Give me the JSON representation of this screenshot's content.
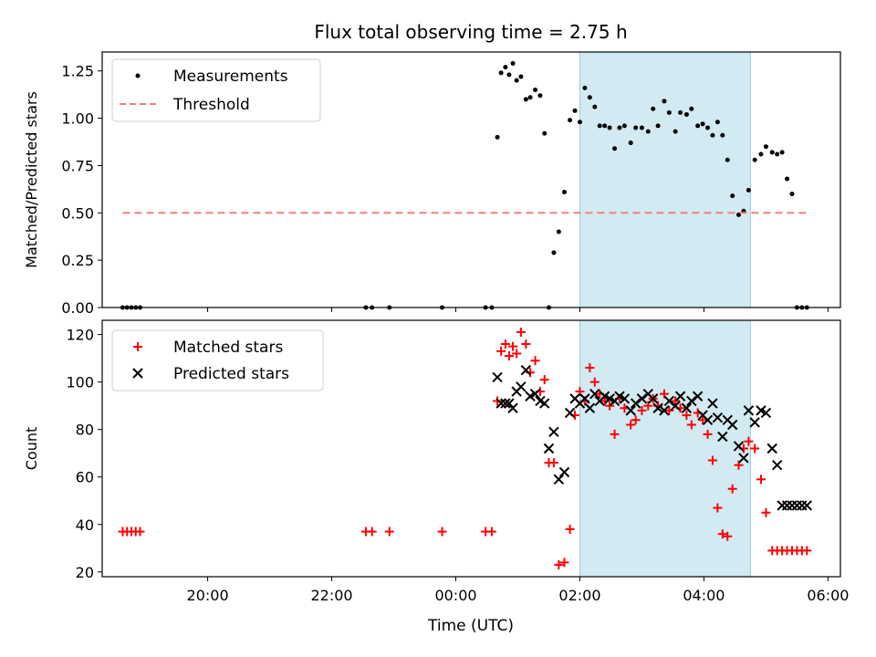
{
  "chart_data": {
    "title": "Flux total observing time = 2.75 h",
    "xlabel": "Time (UTC)",
    "x_ticks": [
      "20:00",
      "22:00",
      "00:00",
      "02:00",
      "04:00",
      "06:00"
    ],
    "x_tick_hours": [
      20,
      22,
      24,
      26,
      28,
      30
    ],
    "xlim_hours": [
      18.3,
      30.2
    ],
    "shaded_interval_hours": [
      26.0,
      28.75
    ],
    "shade_color": "#add8e6",
    "panels": [
      {
        "type": "scatter",
        "ylabel": "Matched/Predicted stars",
        "ylim": [
          0,
          1.35
        ],
        "y_ticks": [
          "0.00",
          "0.25",
          "0.50",
          "0.75",
          "1.00",
          "1.25"
        ],
        "y_tick_values": [
          0,
          0.25,
          0.5,
          0.75,
          1.0,
          1.25
        ],
        "legend_position": "top-left",
        "series": [
          {
            "name": "Measurements",
            "marker": "dot",
            "color": "#000000",
            "x": [
              18.63,
              18.7,
              18.77,
              18.84,
              18.91,
              22.55,
              22.65,
              22.93,
              23.78,
              24.48,
              24.58,
              24.67,
              24.73,
              24.8,
              24.86,
              24.92,
              24.98,
              25.05,
              25.13,
              25.2,
              25.28,
              25.36,
              25.43,
              25.5,
              25.58,
              25.66,
              25.75,
              25.84,
              25.92,
              26.0,
              26.08,
              26.16,
              26.24,
              26.32,
              26.4,
              26.48,
              26.56,
              26.64,
              26.72,
              26.82,
              26.9,
              27.0,
              27.1,
              27.18,
              27.26,
              27.36,
              27.44,
              27.54,
              27.62,
              27.72,
              27.8,
              27.9,
              27.98,
              28.06,
              28.14,
              28.22,
              28.3,
              28.38,
              28.46,
              28.56,
              28.64,
              28.72,
              28.82,
              28.92,
              29.0,
              29.1,
              29.18,
              29.26,
              29.34,
              29.42,
              29.5,
              29.58,
              29.66
            ],
            "y": [
              0,
              0,
              0,
              0,
              0,
              0,
              0,
              0,
              0,
              0,
              0,
              0.9,
              1.24,
              1.27,
              1.23,
              1.29,
              1.2,
              1.22,
              1.1,
              1.11,
              1.15,
              1.12,
              0.92,
              0,
              0.29,
              0.4,
              0.61,
              0.99,
              1.04,
              0.98,
              1.16,
              1.11,
              1.06,
              0.96,
              0.96,
              0.95,
              0.84,
              0.95,
              0.96,
              0.87,
              0.95,
              0.95,
              0.93,
              1.05,
              0.96,
              1.09,
              1.03,
              0.93,
              1.03,
              1.02,
              1.05,
              0.96,
              0.97,
              0.95,
              0.91,
              0.98,
              0.91,
              0.78,
              0.59,
              0.49,
              0.51,
              0.62,
              0.78,
              0.81,
              0.85,
              0.82,
              0.81,
              0.82,
              0.68,
              0.6,
              0.0,
              0.0,
              0.0
            ]
          },
          {
            "name": "Threshold",
            "marker": "dashed-line",
            "color": "#f08080",
            "x": [
              18.63,
              29.66
            ],
            "y": [
              0.5,
              0.5
            ]
          }
        ]
      },
      {
        "type": "scatter",
        "ylabel": "Count",
        "ylim": [
          18,
          126
        ],
        "y_ticks": [
          "20",
          "40",
          "60",
          "80",
          "100",
          "120"
        ],
        "y_tick_values": [
          20,
          40,
          60,
          80,
          100,
          120
        ],
        "legend_position": "top-left",
        "series": [
          {
            "name": "Matched stars",
            "marker": "plus",
            "color": "#ff0000",
            "x": [
              18.63,
              18.7,
              18.77,
              18.84,
              18.91,
              22.55,
              22.65,
              22.93,
              23.78,
              24.48,
              24.58,
              24.67,
              24.73,
              24.8,
              24.86,
              24.92,
              24.98,
              25.05,
              25.13,
              25.2,
              25.28,
              25.36,
              25.43,
              25.5,
              25.58,
              25.66,
              25.75,
              25.84,
              25.92,
              26.0,
              26.08,
              26.16,
              26.24,
              26.32,
              26.4,
              26.48,
              26.56,
              26.64,
              26.72,
              26.82,
              26.9,
              27.0,
              27.1,
              27.18,
              27.26,
              27.36,
              27.44,
              27.54,
              27.62,
              27.72,
              27.8,
              27.9,
              27.98,
              28.06,
              28.14,
              28.22,
              28.3,
              28.38,
              28.46,
              28.56,
              28.64,
              28.72,
              28.82,
              28.92,
              29.0,
              29.1,
              29.18,
              29.26,
              29.34,
              29.42,
              29.5,
              29.58,
              29.66
            ],
            "y": [
              37,
              37,
              37,
              37,
              37,
              37,
              37,
              37,
              37,
              37,
              37,
              92,
              113,
              116,
              111,
              115,
              112,
              121,
              116,
              104,
              109,
              96,
              101,
              66,
              66,
              23,
              24,
              38,
              86,
              96,
              92,
              106,
              100,
              95,
              92,
              90,
              78,
              93,
              89,
              82,
              84,
              88,
              90,
              93,
              90,
              95,
              88,
              92,
              89,
              86,
              82,
              87,
              84,
              78,
              67,
              47,
              36,
              35,
              55,
              65,
              72,
              75,
              72,
              59,
              45,
              29,
              29,
              29,
              29,
              29,
              29,
              29,
              29
            ]
          },
          {
            "name": "Predicted stars",
            "marker": "x",
            "color": "#000000",
            "x": [
              24.67,
              24.73,
              24.8,
              24.86,
              24.92,
              24.98,
              25.05,
              25.13,
              25.2,
              25.28,
              25.36,
              25.43,
              25.5,
              25.58,
              25.66,
              25.75,
              25.84,
              25.92,
              26.0,
              26.08,
              26.16,
              26.24,
              26.32,
              26.4,
              26.48,
              26.56,
              26.64,
              26.72,
              26.82,
              26.9,
              27.0,
              27.1,
              27.18,
              27.26,
              27.36,
              27.44,
              27.54,
              27.62,
              27.72,
              27.8,
              27.9,
              27.98,
              28.06,
              28.14,
              28.22,
              28.3,
              28.38,
              28.46,
              28.56,
              28.64,
              28.72,
              28.82,
              28.92,
              29.0,
              29.1,
              29.18,
              29.26,
              29.34,
              29.42,
              29.5,
              29.58,
              29.66
            ],
            "y": [
              102,
              91,
              91,
              91,
              89,
              96,
              98,
              105,
              94,
              95,
              92,
              91,
              72,
              79,
              59,
              62,
              87,
              93,
              91,
              93,
              89,
              95,
              92,
              94,
              93,
              92,
              94,
              93,
              88,
              91,
              93,
              95,
              93,
              89,
              88,
              92,
              90,
              94,
              89,
              92,
              94,
              86,
              84,
              91,
              85,
              77,
              84,
              82,
              73,
              68,
              88,
              83,
              88,
              87,
              72,
              65,
              48,
              48,
              48,
              48,
              48,
              48
            ]
          }
        ]
      }
    ]
  }
}
